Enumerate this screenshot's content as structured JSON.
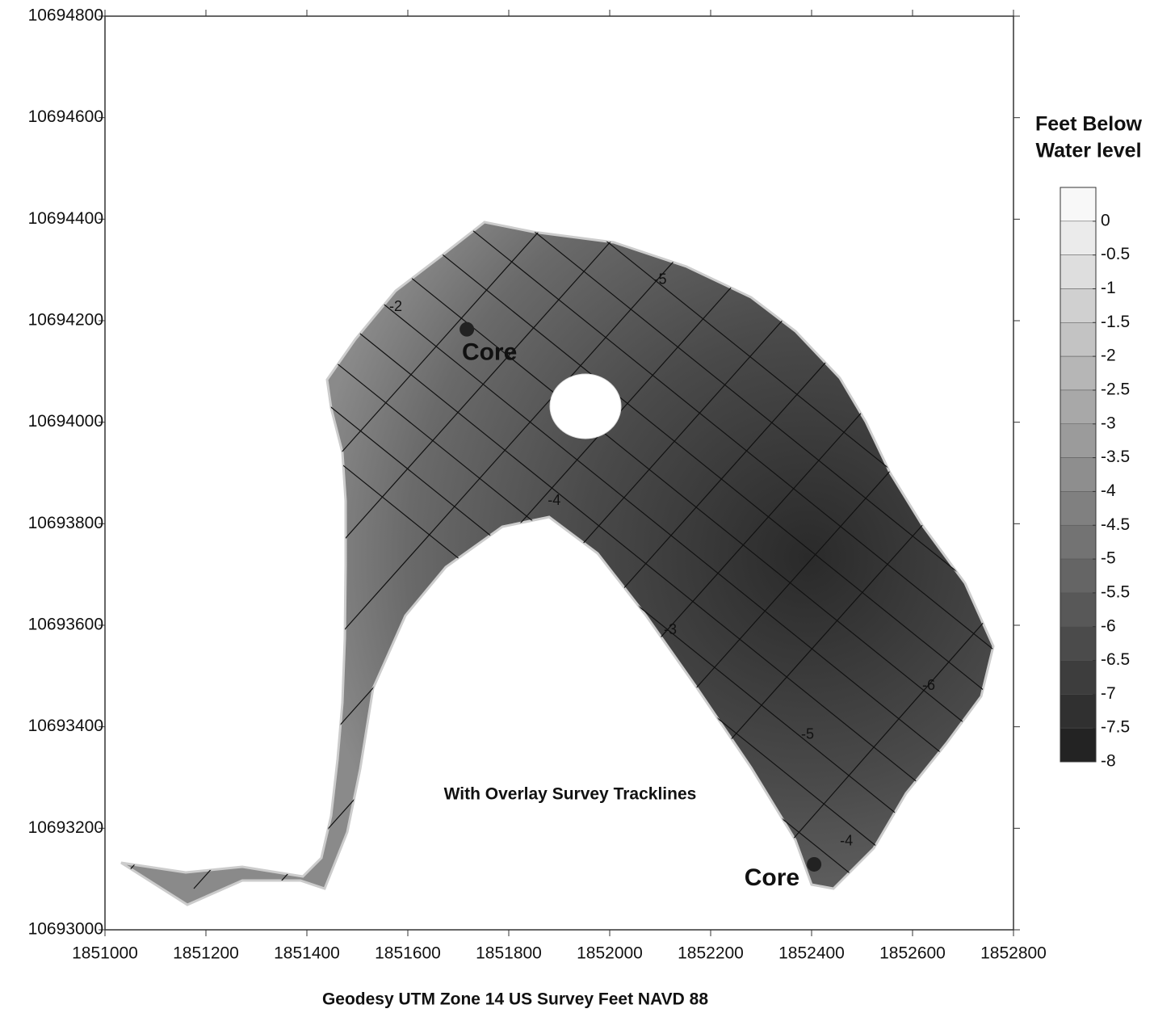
{
  "chart_data": {
    "type": "contour",
    "xlabel": "Geodesy UTM Zone 14 US Survey Feet NAVD 88",
    "annotation": "With Overlay Survey Tracklines",
    "xlim": [
      1851000,
      1852800
    ],
    "ylim": [
      10693000,
      10694800
    ],
    "xticks": [
      1851000,
      1851200,
      1851400,
      1851600,
      1851800,
      1852000,
      1852200,
      1852400,
      1852600,
      1852800
    ],
    "yticks": [
      10693000,
      10693200,
      10693400,
      10693600,
      10693800,
      10694000,
      10694200,
      10694400,
      10694600,
      10694800
    ],
    "colorbar": {
      "title": [
        "Feet Below",
        "Water level"
      ],
      "lim": [
        -8,
        0.5
      ],
      "ticks": [
        0,
        -0.5,
        -1,
        -1.5,
        -2,
        -2.5,
        -3,
        -3.5,
        -4,
        -4.5,
        -5,
        -5.5,
        -6,
        -6.5,
        -7,
        -7.5,
        -8
      ],
      "colors": [
        "#1c1c1c",
        "#ffffff"
      ]
    },
    "cores": [
      {
        "label": "Core",
        "x": 1851717,
        "y": 10694183
      },
      {
        "label": "Core",
        "x": 1852405,
        "y": 10693129
      }
    ],
    "contour_labels": [
      {
        "label": "-5",
        "x": 1852100,
        "y": 10694280
      },
      {
        "label": "-4",
        "x": 1851890,
        "y": 10693845
      },
      {
        "label": "-6",
        "x": 1852632,
        "y": 10693480
      },
      {
        "label": "-3",
        "x": 1852120,
        "y": 10693590
      },
      {
        "label": "-5",
        "x": 1852392,
        "y": 10693384
      },
      {
        "label": "-2",
        "x": 1851576,
        "y": 10694227
      },
      {
        "label": "-4",
        "x": 1852469,
        "y": 10693174
      }
    ]
  }
}
